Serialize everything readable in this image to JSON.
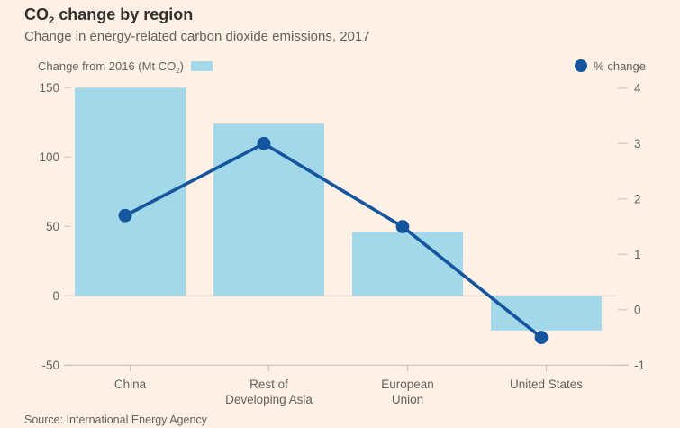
{
  "header": {
    "title_prefix": "CO",
    "title_subscript": "2",
    "title_suffix": " change by region",
    "subtitle": "Change in energy-related carbon dioxide emissions, 2017"
  },
  "legend": {
    "bars_label_prefix": "Change from 2016 (Mt CO",
    "bars_label_subscript": "2",
    "bars_label_suffix": ")",
    "line_label": "% change"
  },
  "source": "Source: International Energy Agency",
  "colors": {
    "background": "#FFF1E5",
    "bar": "#A3D8EA",
    "line": "#14559E",
    "title_text": "#33302E",
    "muted_text": "#66605C",
    "grid": "#CCC1B7",
    "tick_dash": "#D9CFC6"
  },
  "chart_data": {
    "type": "bar+line combo",
    "title": "CO2 change by region",
    "subtitle": "Change in energy-related carbon dioxide emissions, 2017",
    "source": "Source: International Energy Agency",
    "legend_position": "top",
    "grid": "zero-line only",
    "categories": [
      "China",
      "Rest of Developing Asia",
      "European Union",
      "United States"
    ],
    "category_label_lines": [
      [
        "China"
      ],
      [
        "Rest of",
        "Developing Asia"
      ],
      [
        "European",
        "Union"
      ],
      [
        "United States"
      ]
    ],
    "series": [
      {
        "name": "Change from 2016 (Mt CO2)",
        "type": "bar",
        "axis": "left",
        "values": [
          150,
          124,
          46,
          -25
        ]
      },
      {
        "name": "% change",
        "type": "line",
        "axis": "right",
        "values": [
          1.7,
          3.0,
          1.5,
          -0.5
        ]
      }
    ],
    "left_axis": {
      "label": "Change from 2016 (Mt CO2)",
      "ticks": [
        150,
        100,
        50,
        0,
        -50
      ],
      "ylim": [
        -50,
        150
      ]
    },
    "right_axis": {
      "label": "% change",
      "ticks": [
        4,
        3,
        2,
        1,
        0,
        -1
      ],
      "ylim": [
        -1,
        4
      ]
    }
  }
}
